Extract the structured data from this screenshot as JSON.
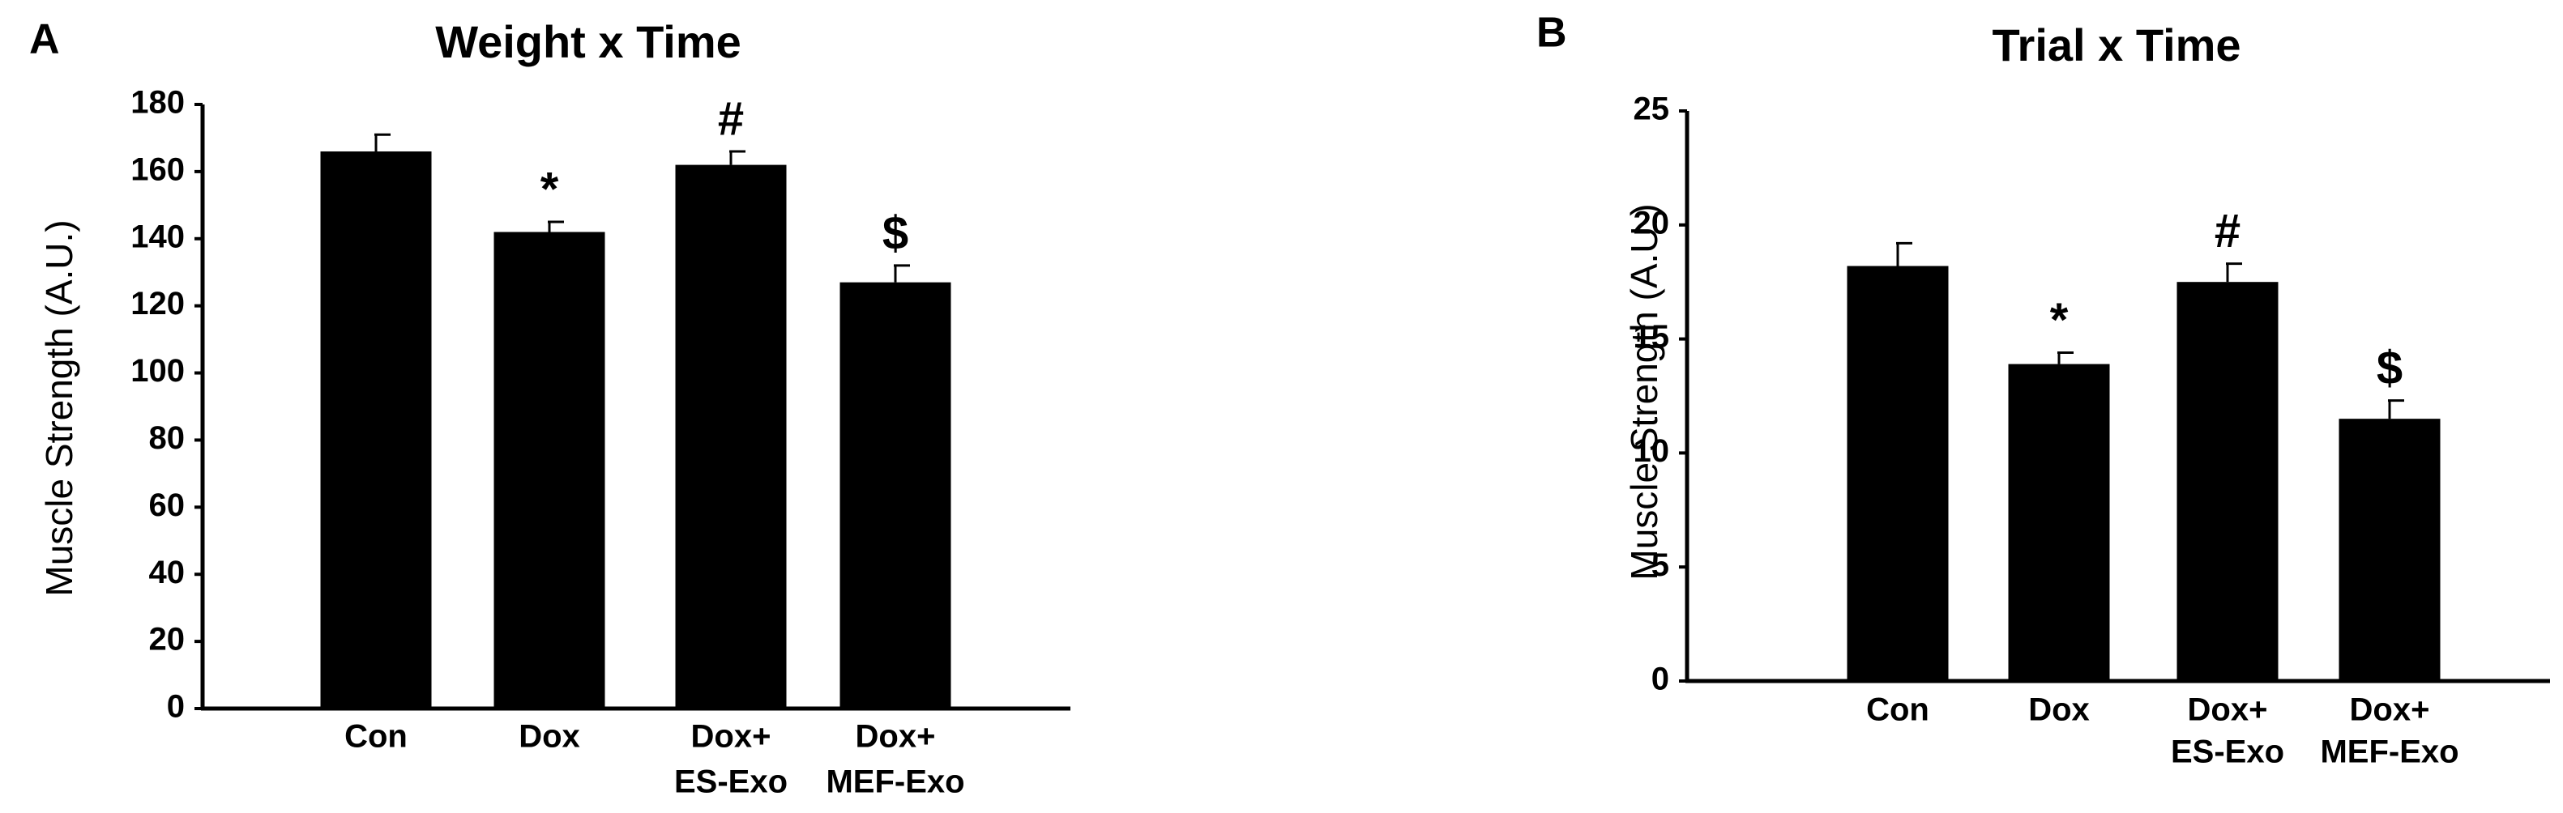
{
  "chart_data": [
    {
      "type": "bar",
      "panel_label": "A",
      "title": "Weight x Time",
      "y_label": "Muscle Strength (A.U.)",
      "categories": [
        [
          "Con"
        ],
        [
          "Dox"
        ],
        [
          "Dox+",
          "ES-Exo"
        ],
        [
          "Dox+",
          "MEF-Exo"
        ]
      ],
      "values": [
        166,
        142,
        162,
        127
      ],
      "errors": [
        5,
        3,
        4,
        5
      ],
      "annotations": [
        null,
        "*",
        "#",
        "$"
      ],
      "color": "#000000",
      "ylim": [
        0,
        180
      ],
      "yticks": [
        0,
        20,
        40,
        60,
        80,
        100,
        120,
        140,
        160,
        180
      ],
      "grid": false
    },
    {
      "type": "bar",
      "panel_label": "B",
      "title": "Trial x Time",
      "y_label": "Muscle Strength (A.U.)",
      "categories": [
        [
          "Con"
        ],
        [
          "Dox"
        ],
        [
          "Dox+",
          "ES-Exo"
        ],
        [
          "Dox+",
          "MEF-Exo"
        ]
      ],
      "values": [
        18.2,
        13.9,
        17.5,
        11.5
      ],
      "errors": [
        1.0,
        0.5,
        0.8,
        0.8
      ],
      "annotations": [
        null,
        "*",
        "#",
        "$"
      ],
      "color": "#000000",
      "ylim": [
        0,
        25
      ],
      "yticks": [
        0,
        5,
        10,
        15,
        20,
        25
      ],
      "grid": false
    }
  ]
}
